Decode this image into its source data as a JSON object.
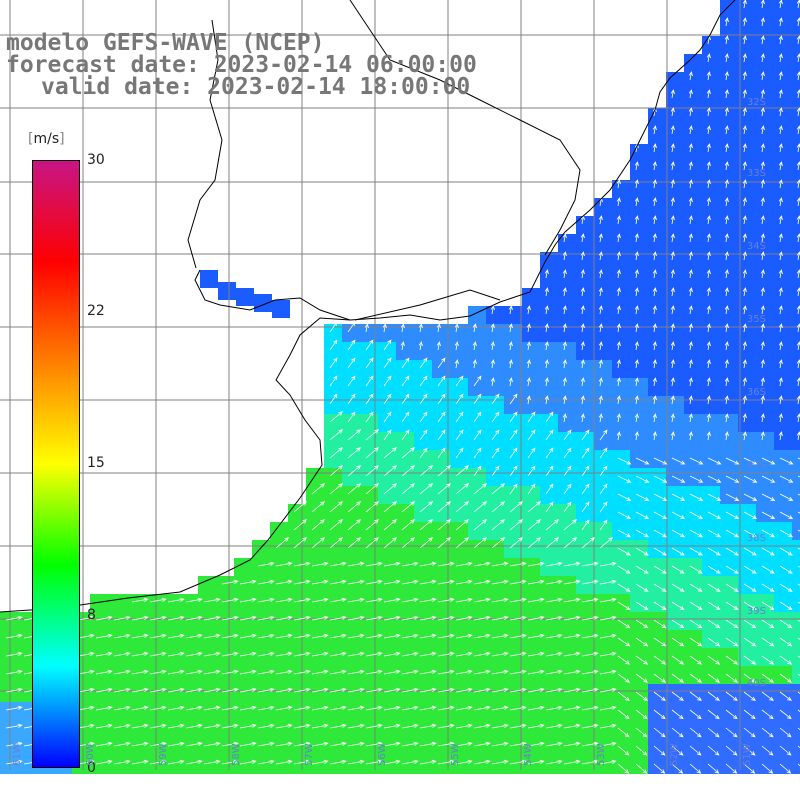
{
  "title": {
    "line1": "modelo GEFS-WAVE (NCEP)",
    "line2": "forecast date: 2023-02-14 06:00:00",
    "line3": "valid date: 2023-02-14 18:00:00"
  },
  "colorbar": {
    "unit": "m/s",
    "ticks": [
      "30",
      "22",
      "15",
      "8",
      "0"
    ],
    "colors": [
      "#0000ff",
      "#00ffff",
      "#00ff00",
      "#ffff00",
      "#ff8000",
      "#ff0000",
      "#c71585"
    ]
  },
  "map": {
    "lat_labels": [
      "32S",
      "33S",
      "34S",
      "35S",
      "36S",
      "37S",
      "38S",
      "39S",
      "40S"
    ],
    "lon_labels": [
      "61W",
      "60W",
      "59W",
      "58W",
      "57W",
      "56W",
      "55W",
      "54W",
      "53W",
      "52W",
      "51W"
    ],
    "land_color": "#ffffff",
    "coast_color": "#000000",
    "grid_color": "#808080",
    "arrow_color": "#ffffff"
  }
}
